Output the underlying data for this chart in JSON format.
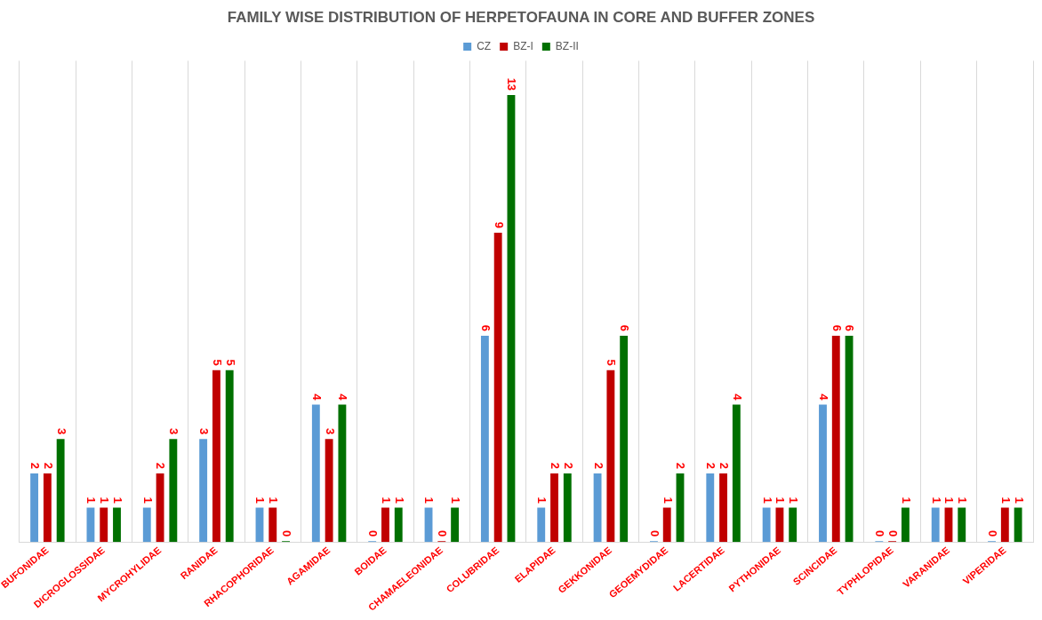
{
  "chart_data": {
    "type": "bar",
    "title": "FAMILY WISE DISTRIBUTION OF HERPETOFAUNA IN CORE AND BUFFER ZONES",
    "categories": [
      "BUFONIDAE",
      "DICROGLOSSIDAE",
      "MYCROHYLIDAE",
      "RANIDAE",
      "RHACOPHORIDAE",
      "AGAMIDAE",
      "BOIDAE",
      "CHAMAELEONIDAE",
      "COLUBRIDAE",
      "ELAPIDAE",
      "GEKKONIDAE",
      "GEOEMYDIDAE",
      "LACERTIDAE",
      "PYTHONIDAE",
      "SCINCIDAE",
      "TYPHLOPIDAE",
      "VARANIDAE",
      "VIPERIDAE"
    ],
    "series": [
      {
        "name": "CZ",
        "color": "#5b9bd5",
        "values": [
          2,
          1,
          1,
          3,
          1,
          4,
          0,
          1,
          6,
          1,
          2,
          0,
          2,
          1,
          4,
          0,
          1,
          0
        ]
      },
      {
        "name": "BZ-I",
        "color": "#c00000",
        "values": [
          2,
          1,
          2,
          5,
          1,
          3,
          1,
          0,
          9,
          2,
          5,
          1,
          2,
          1,
          6,
          0,
          1,
          1
        ]
      },
      {
        "name": "BZ-II",
        "color": "#007000",
        "values": [
          3,
          1,
          3,
          5,
          0,
          4,
          1,
          1,
          13,
          2,
          6,
          2,
          4,
          1,
          6,
          1,
          1,
          1
        ]
      }
    ],
    "data_labels": true,
    "grid": "x",
    "legend": "top"
  }
}
